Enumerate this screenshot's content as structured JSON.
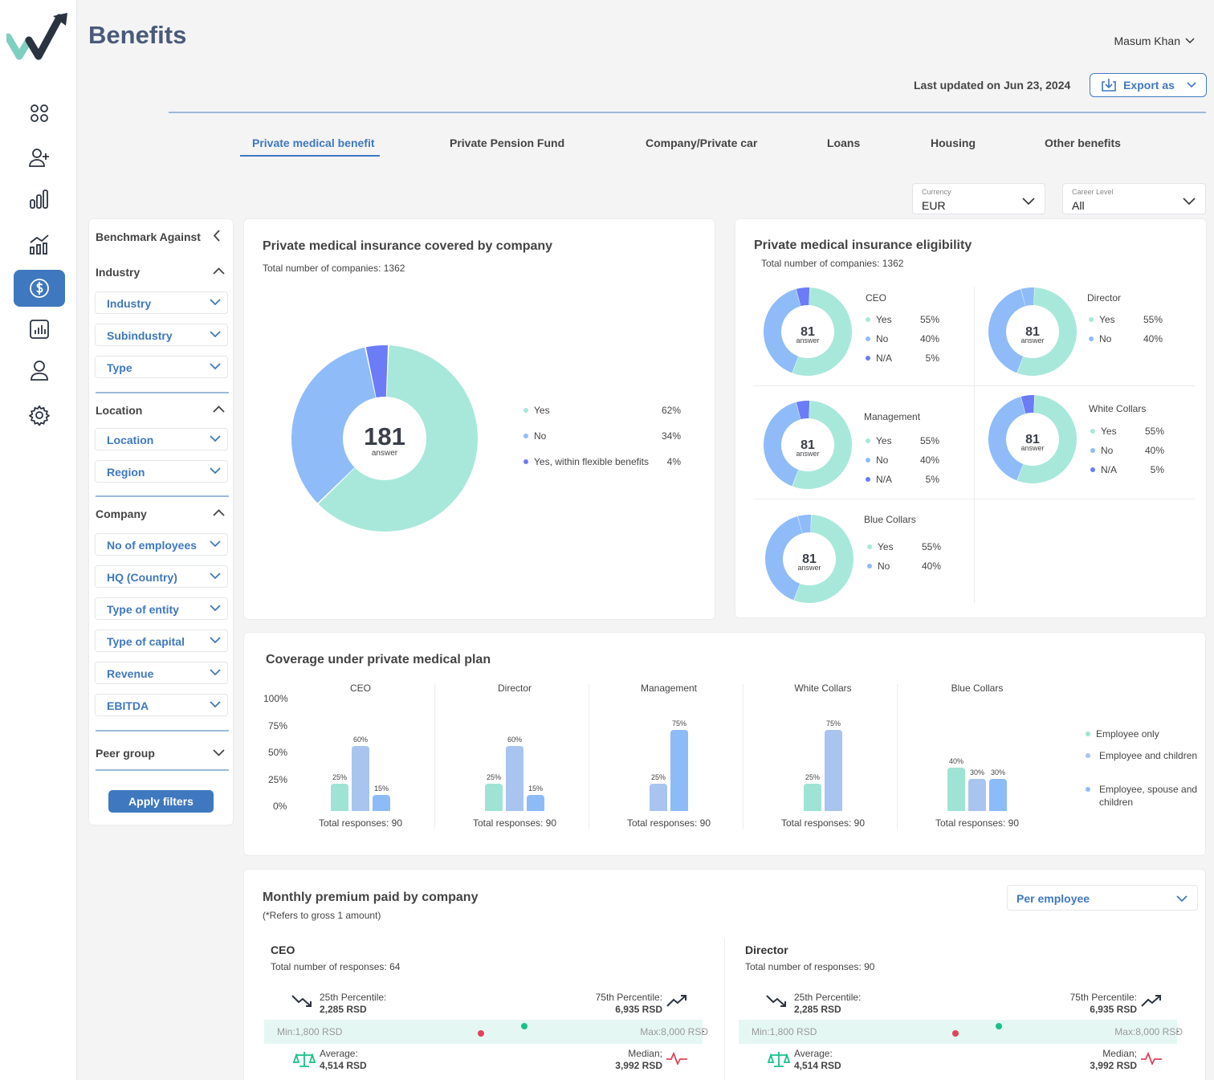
{
  "page": {
    "title": "Benefits",
    "user": "Masum Khan",
    "last_updated": "Last updated on Jun 23, 2024",
    "export_label": "Export as"
  },
  "tabs": [
    "Private medical benefit",
    "Private Pension Fund",
    "Company/Private car",
    "Loans",
    "Housing",
    "Other benefits"
  ],
  "selectors": {
    "currency": {
      "label": "Currency",
      "value": "EUR"
    },
    "career": {
      "label": "Career Level",
      "value": "All"
    }
  },
  "filters": {
    "header": "Benchmark Against",
    "industry_title": "Industry",
    "industry_items": [
      "Industry",
      "Subindustry",
      "Type"
    ],
    "location_title": "Location",
    "location_items": [
      "Location",
      "Region"
    ],
    "company_title": "Company",
    "company_items": [
      "No of employees",
      "HQ (Country)",
      "Type of entity",
      "Type of capital",
      "Revenue",
      "EBITDA"
    ],
    "peer_group": "Peer group",
    "apply": "Apply filters"
  },
  "colors": {
    "accent": "#3f78bf",
    "yes": "#a8e8da",
    "no": "#8fbcf8",
    "flex": "#6b7cf6",
    "employee_only": "#9fe3d4",
    "employee_children": "#a9c4ee",
    "employee_spouse": "#8cbcf8",
    "avg": "#19c08a",
    "med": "#e0445a"
  },
  "covered": {
    "title": "Private medical insurance covered by company",
    "subtitle": "Total number of companies: 1362",
    "total": "181",
    "unit": "answer",
    "chart_data": {
      "type": "pie",
      "categories": [
        "Yes",
        "No",
        "Yes, within flexible benefits"
      ],
      "values": [
        62,
        34,
        4
      ]
    },
    "legend": [
      {
        "label": "Yes",
        "pct": "62%"
      },
      {
        "label": "No",
        "pct": "34%"
      },
      {
        "label": "Yes, within flexible benefits",
        "pct": "4%"
      }
    ]
  },
  "eligibility": {
    "title": "Private medical insurance eligibility",
    "subtitle": "Total number of companies: 1362",
    "groups": [
      {
        "name": "CEO",
        "total": "81",
        "unit": "answer",
        "legend": [
          {
            "label": "Yes",
            "pct": "55%"
          },
          {
            "label": "No",
            "pct": "40%"
          },
          {
            "label": "N/A",
            "pct": "5%"
          }
        ]
      },
      {
        "name": "Director",
        "total": "81",
        "unit": "answer",
        "legend": [
          {
            "label": "Yes",
            "pct": "55%"
          },
          {
            "label": "No",
            "pct": "40%"
          }
        ]
      },
      {
        "name": "Management",
        "total": "81",
        "unit": "answer",
        "legend": [
          {
            "label": "Yes",
            "pct": "55%"
          },
          {
            "label": "No",
            "pct": "40%"
          },
          {
            "label": "N/A",
            "pct": "5%"
          }
        ]
      },
      {
        "name": "White Collars",
        "total": "81",
        "unit": "answer",
        "legend": [
          {
            "label": "Yes",
            "pct": "55%"
          },
          {
            "label": "No",
            "pct": "40%"
          },
          {
            "label": "N/A",
            "pct": "5%"
          }
        ]
      },
      {
        "name": "Blue Collars",
        "total": "81",
        "unit": "answer",
        "legend": [
          {
            "label": "Yes",
            "pct": "55%"
          },
          {
            "label": "No",
            "pct": "40%"
          }
        ]
      }
    ]
  },
  "coverage": {
    "title": "Coverage under private medical plan",
    "chart_data": {
      "type": "bar",
      "ylim": [
        0,
        100
      ],
      "yticks": [
        "100%",
        "75%",
        "50%",
        "25%",
        "0%"
      ],
      "groups": [
        {
          "name": "CEO",
          "total": "Total responses: 90",
          "bars": [
            {
              "series": "Employee only",
              "value": 25
            },
            {
              "series": "Employee and children",
              "value": 60
            },
            {
              "series": "Employee, spouse and children",
              "value": 15
            }
          ]
        },
        {
          "name": "Director",
          "total": "Total responses: 90",
          "bars": [
            {
              "series": "Employee only",
              "value": 25
            },
            {
              "series": "Employee and children",
              "value": 60
            },
            {
              "series": "Employee, spouse and children",
              "value": 15
            }
          ]
        },
        {
          "name": "Management",
          "total": "Total responses: 90",
          "bars": [
            {
              "series": "Employee and children",
              "value": 25
            },
            {
              "series": "Employee, spouse and children",
              "value": 75
            }
          ]
        },
        {
          "name": "White Collars",
          "total": "Total responses: 90",
          "bars": [
            {
              "series": "Employee only",
              "value": 25
            },
            {
              "series": "Employee and children",
              "value": 75
            }
          ]
        },
        {
          "name": "Blue Collars",
          "total": "Total responses: 90",
          "bars": [
            {
              "series": "Employee only",
              "value": 40
            },
            {
              "series": "Employee and children",
              "value": 30
            },
            {
              "series": "Employee, spouse and children",
              "value": 30
            }
          ]
        }
      ],
      "legend": [
        "Employee only",
        "Employee and children",
        "Employee, spouse and children"
      ]
    }
  },
  "premium": {
    "title": "Monthly premium paid by company",
    "subtitle": "(*Refers to gross 1 amount)",
    "dropdown": "Per employee",
    "blocks": [
      {
        "name": "CEO",
        "responses": "Total number of responses: 64",
        "p25_label": "25th Percentile:",
        "p25": "2,285 RSD",
        "p75_label": "75th Percentile:",
        "p75": "6,935 RSD",
        "min": "Min:1,800 RSD",
        "max": "Max:8,000 RSD",
        "avg_label": "Average:",
        "avg": "4,514 RSD",
        "median_label": "Median;",
        "median": "3,992 RSD"
      },
      {
        "name": "Director",
        "responses": "Total number of responses: 90",
        "p25_label": "25th Percentile:",
        "p25": "2,285 RSD",
        "p75_label": "75th Percentile:",
        "p75": "6,935 RSD",
        "min": "Min:1,800 RSD",
        "max": "Max:8,000 RSD",
        "avg_label": "Average:",
        "avg": "4,514 RSD",
        "median_label": "Median;",
        "median": "3,992 RSD"
      }
    ]
  }
}
